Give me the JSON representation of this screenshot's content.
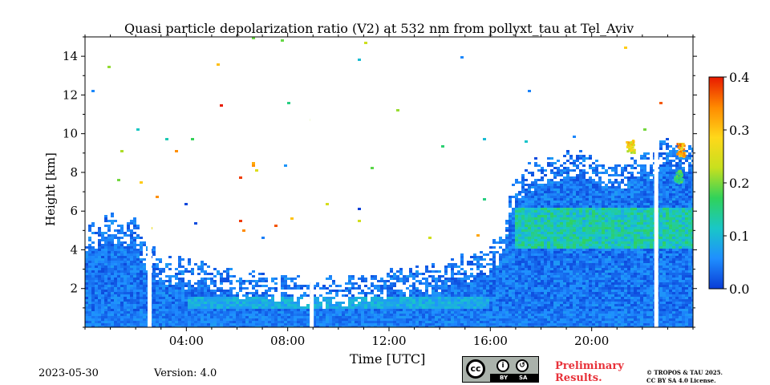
{
  "chart_data": {
    "type": "heatmap",
    "title": "Quasi particle depolarization ratio (V2) at 532 nm from pollyxt_tau at Tel_Aviv",
    "xlabel": "Time [UTC]",
    "ylabel": "Height [km]",
    "xlim": [
      0,
      24
    ],
    "ylim": [
      0,
      15
    ],
    "x_ticks": [
      {
        "value": 4,
        "label": "04:00"
      },
      {
        "value": 8,
        "label": "08:00"
      },
      {
        "value": 12,
        "label": "12:00"
      },
      {
        "value": 16,
        "label": "16:00"
      },
      {
        "value": 20,
        "label": "20:00"
      }
    ],
    "y_ticks": [
      {
        "value": 2,
        "label": "2"
      },
      {
        "value": 4,
        "label": "4"
      },
      {
        "value": 6,
        "label": "6"
      },
      {
        "value": 8,
        "label": "8"
      },
      {
        "value": 10,
        "label": "10"
      },
      {
        "value": 12,
        "label": "12"
      },
      {
        "value": 14,
        "label": "14"
      }
    ],
    "colorbar": {
      "min": 0.0,
      "max": 0.4,
      "ticks": [
        "0.0",
        "0.1",
        "0.2",
        "0.3",
        "0.4"
      ],
      "colors": [
        "#0a3cd6",
        "#1f8fff",
        "#19c7c7",
        "#30d25a",
        "#c8e01e",
        "#ffd81a",
        "#ff8a00",
        "#e81a00"
      ]
    },
    "layer_top_km": [
      [
        0,
        5.0
      ],
      [
        1,
        5.6
      ],
      [
        2,
        5.4
      ],
      [
        2.6,
        4.2
      ],
      [
        3,
        3.7
      ],
      [
        4,
        3.4
      ],
      [
        5,
        3.1
      ],
      [
        6,
        2.8
      ],
      [
        7,
        2.6
      ],
      [
        8,
        2.5
      ],
      [
        9,
        2.4
      ],
      [
        10,
        2.4
      ],
      [
        11,
        2.6
      ],
      [
        12,
        2.8
      ],
      [
        13,
        3.0
      ],
      [
        14,
        3.1
      ],
      [
        15,
        3.6
      ],
      [
        16,
        4.0
      ],
      [
        16.5,
        5.2
      ],
      [
        17,
        8.0
      ],
      [
        18,
        8.6
      ],
      [
        19,
        9.0
      ],
      [
        20,
        8.8
      ],
      [
        21,
        8.4
      ],
      [
        22,
        8.8
      ],
      [
        23,
        9.6
      ],
      [
        24,
        9.4
      ]
    ],
    "data_gaps_utc": [
      2.55,
      8.95,
      22.55
    ],
    "dust_layer": {
      "start_utc": 17.0,
      "end_utc": 24.0,
      "bottom_km": 4.0,
      "top_km": 6.2,
      "value": 0.14
    },
    "cloud_patches": [
      {
        "time_utc": 21.5,
        "height_km": 9.4,
        "value": 0.3
      },
      {
        "time_utc": 23.5,
        "height_km": 9.2,
        "value": 0.35
      },
      {
        "time_utc": 23.4,
        "height_km": 7.8,
        "value": 0.18
      }
    ],
    "background_value": 0.01
  },
  "footer": {
    "date": "2023-05-30",
    "version": "Version: 4.0",
    "license_icon_text": "cc",
    "license_by": "BY",
    "license_sa": "SA",
    "preliminary_line1": "Preliminary",
    "preliminary_line2": "Results.",
    "copyright_line1": "© TROPOS & TAU 2025.",
    "copyright_line2": "CC BY SA 4.0 License."
  }
}
